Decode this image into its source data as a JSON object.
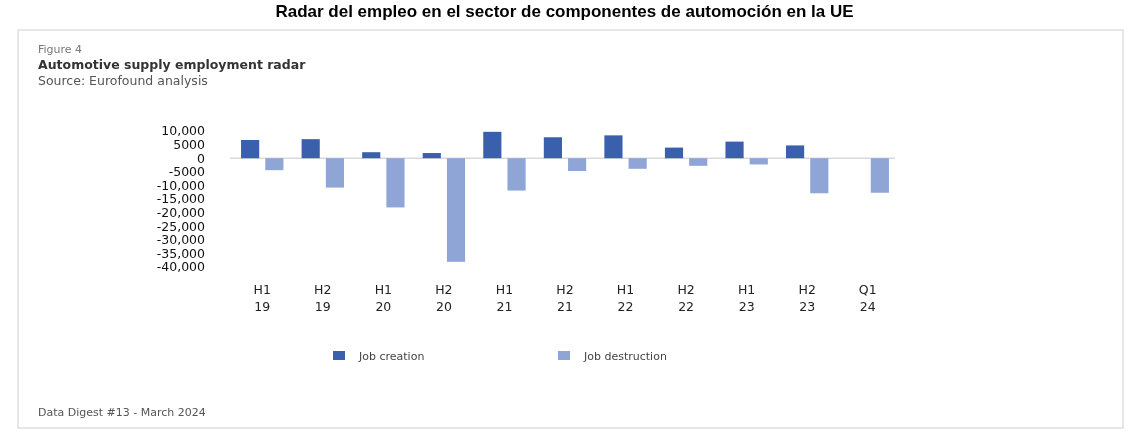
{
  "chart_data": {
    "type": "bar",
    "title": "Radar del empleo en el sector de componentes de automoción en la UE",
    "subtitle": "Automotive supply employment radar",
    "annotations": [
      "Figure 4",
      "Source: Eurofound analysis",
      "Data Digest #13 - March 2024"
    ],
    "categories": [
      "H1 19",
      "H2 19",
      "H1 20",
      "H2 20",
      "H1 21",
      "H2 21",
      "H1 22",
      "H2 22",
      "H1 23",
      "H2 23",
      "Q1 24"
    ],
    "series": [
      {
        "name": "Job creation",
        "color": "#3a5fad",
        "values": [
          6700,
          7000,
          2200,
          1900,
          9700,
          7700,
          8400,
          3900,
          6100,
          4700,
          null
        ]
      },
      {
        "name": "Job destruction",
        "color": "#8fa5d6",
        "values": [
          -4400,
          -10800,
          -18100,
          -38100,
          -11900,
          -4700,
          -3900,
          -2800,
          -2300,
          -12900,
          -12700
        ]
      }
    ],
    "ylim": [
      -40000,
      10000
    ],
    "yticks": [
      {
        "value": 10000,
        "label": "10,000"
      },
      5000,
      0,
      -5000,
      {
        "value": -10000,
        "label": "-10,000"
      },
      {
        "value": -15000,
        "label": "-15,000"
      },
      {
        "value": -20000,
        "label": "-20,000"
      },
      {
        "value": -25000,
        "label": "-25,000"
      },
      {
        "value": -30000,
        "label": "-30,000"
      },
      {
        "value": -35000,
        "label": "-35,000"
      },
      {
        "value": -40000,
        "label": "-40,000"
      }
    ],
    "legend": "bottom"
  }
}
